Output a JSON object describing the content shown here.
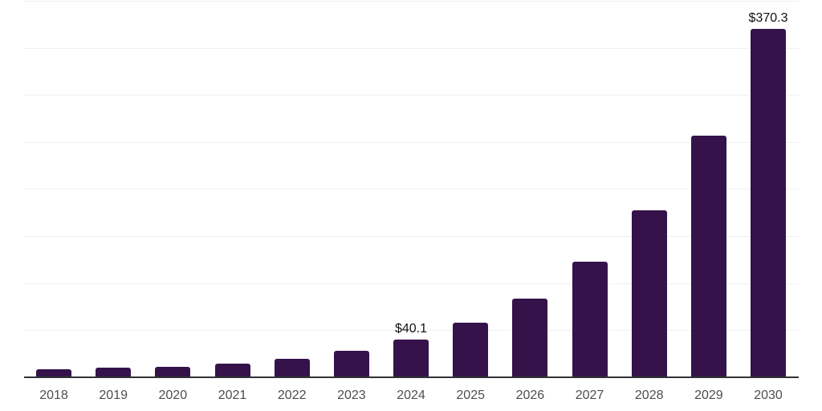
{
  "chart_data": {
    "type": "bar",
    "title": "",
    "xlabel": "",
    "ylabel": "",
    "categories": [
      "2018",
      "2019",
      "2020",
      "2021",
      "2022",
      "2023",
      "2024",
      "2025",
      "2026",
      "2027",
      "2028",
      "2029",
      "2030"
    ],
    "values": [
      8.4,
      10.5,
      11.3,
      14.8,
      19.4,
      28.4,
      40.1,
      58.2,
      83.2,
      123.0,
      177.8,
      257.1,
      370.3
    ],
    "data_labels": {
      "2024": "$40.1",
      "2030": "$370.3"
    },
    "ylim": [
      0,
      400
    ],
    "gridline_step": 50,
    "grid": "horizontal",
    "legend": "none",
    "colors": {
      "bar": "#36124a",
      "axis_line": "#333333",
      "gridline": "#f0f0f0",
      "value_label": "#111111",
      "tick_label": "#4d4d4d",
      "background": "#ffffff"
    }
  }
}
